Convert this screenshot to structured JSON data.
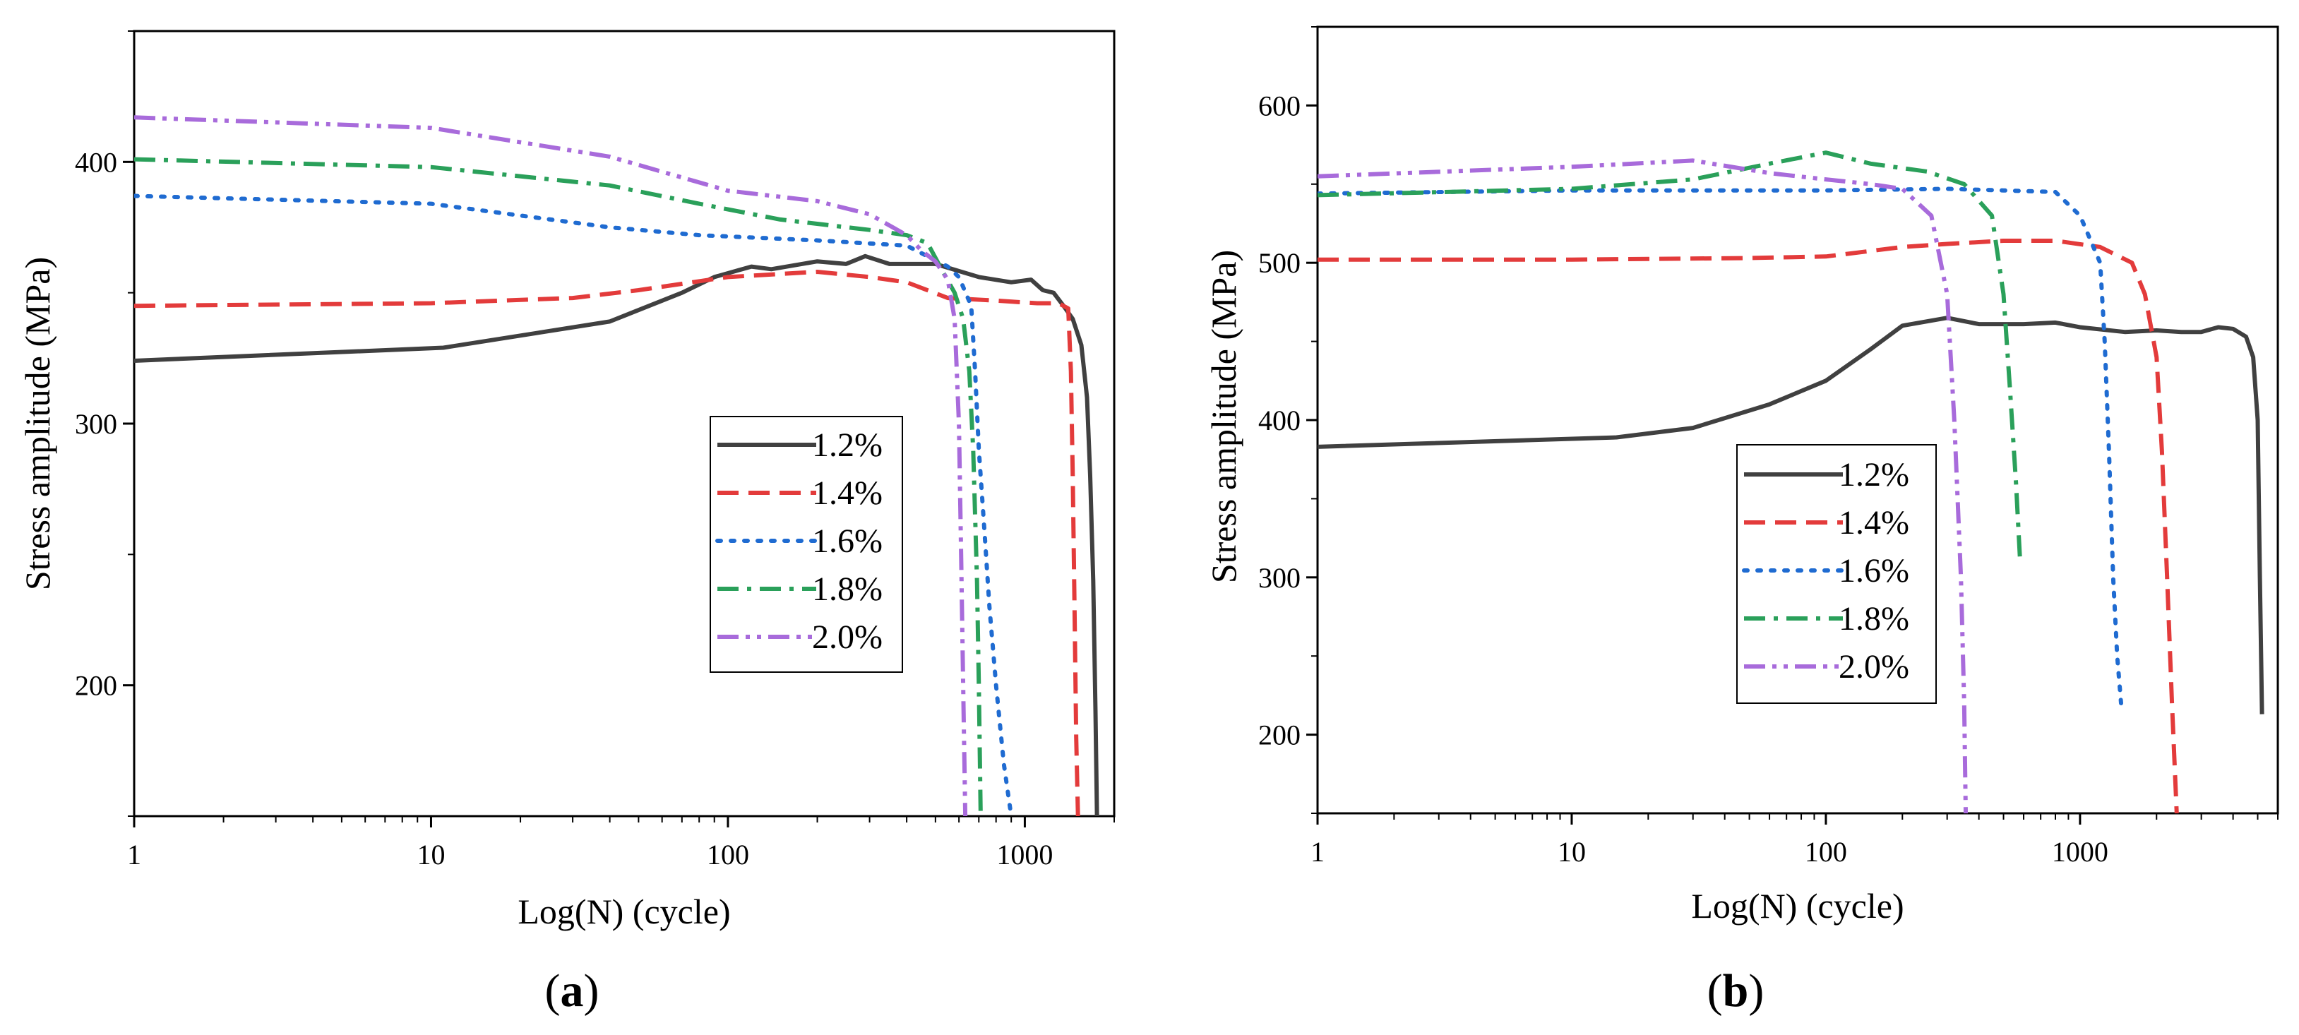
{
  "chart_data": [
    {
      "type": "line",
      "panel_label": "(a)",
      "panel_letter": "a",
      "xlabel": "Log(N) (cycle)",
      "ylabel": "Stress amplitude (MPa)",
      "xscale": "log",
      "xlim": [
        1,
        2000
      ],
      "ylim": [
        150,
        450
      ],
      "xticks": [
        1,
        10,
        100,
        1000
      ],
      "xtick_labels": [
        "1",
        "10",
        "100",
        "1000"
      ],
      "yticks": [
        200,
        300,
        400
      ],
      "ytick_labels": [
        "200",
        "300",
        "400"
      ],
      "grid": false,
      "legend_position": "center-right",
      "series": [
        {
          "name": "1.2%",
          "color": "#404040",
          "dash": "solid",
          "points": [
            [
              1,
              324
            ],
            [
              11,
              329
            ],
            [
              40,
              339
            ],
            [
              70,
              350
            ],
            [
              90,
              356
            ],
            [
              120,
              360
            ],
            [
              140,
              359
            ],
            [
              200,
              362
            ],
            [
              250,
              361
            ],
            [
              290,
              364
            ],
            [
              350,
              361
            ],
            [
              500,
              361
            ],
            [
              700,
              356
            ],
            [
              900,
              354
            ],
            [
              1050,
              355
            ],
            [
              1150,
              351
            ],
            [
              1250,
              350
            ],
            [
              1350,
              345
            ],
            [
              1450,
              340
            ],
            [
              1550,
              330
            ],
            [
              1620,
              310
            ],
            [
              1660,
              280
            ],
            [
              1700,
              240
            ],
            [
              1730,
              190
            ],
            [
              1750,
              150
            ]
          ]
        },
        {
          "name": "1.4%",
          "color": "#e33b3b",
          "dash": "dashed",
          "points": [
            [
              1,
              345
            ],
            [
              10,
              346
            ],
            [
              30,
              348
            ],
            [
              50,
              351
            ],
            [
              100,
              356
            ],
            [
              200,
              358
            ],
            [
              300,
              356
            ],
            [
              400,
              354
            ],
            [
              550,
              348
            ],
            [
              800,
              347
            ],
            [
              1100,
              346
            ],
            [
              1300,
              346
            ],
            [
              1400,
              344
            ],
            [
              1430,
              320
            ],
            [
              1450,
              280
            ],
            [
              1470,
              230
            ],
            [
              1490,
              180
            ],
            [
              1510,
              150
            ]
          ]
        },
        {
          "name": "1.6%",
          "color": "#1f6bd1",
          "dash": "dotted",
          "points": [
            [
              1,
              387
            ],
            [
              10,
              384
            ],
            [
              40,
              375
            ],
            [
              80,
              372
            ],
            [
              200,
              370
            ],
            [
              400,
              368
            ],
            [
              550,
              360
            ],
            [
              600,
              356
            ],
            [
              660,
              345
            ],
            [
              680,
              320
            ],
            [
              700,
              290
            ],
            [
              730,
              260
            ],
            [
              760,
              230
            ],
            [
              800,
              200
            ],
            [
              850,
              170
            ],
            [
              900,
              150
            ]
          ]
        },
        {
          "name": "1.8%",
          "color": "#2aa05a",
          "dash": "dashdot",
          "points": [
            [
              1,
              401
            ],
            [
              10,
              398
            ],
            [
              40,
              391
            ],
            [
              80,
              384
            ],
            [
              150,
              378
            ],
            [
              300,
              374
            ],
            [
              400,
              372
            ],
            [
              470,
              369
            ],
            [
              530,
              358
            ],
            [
              580,
              350
            ],
            [
              620,
              340
            ],
            [
              650,
              320
            ],
            [
              670,
              290
            ],
            [
              690,
              240
            ],
            [
              700,
              200
            ],
            [
              710,
              150
            ]
          ]
        },
        {
          "name": "2.0%",
          "color": "#a86bdb",
          "dash": "dashdotdot",
          "points": [
            [
              1,
              417
            ],
            [
              10,
              413
            ],
            [
              40,
              402
            ],
            [
              100,
              389
            ],
            [
              200,
              385
            ],
            [
              300,
              380
            ],
            [
              400,
              372
            ],
            [
              450,
              366
            ],
            [
              500,
              362
            ],
            [
              550,
              355
            ],
            [
              580,
              340
            ],
            [
              600,
              300
            ],
            [
              610,
              250
            ],
            [
              620,
              200
            ],
            [
              630,
              150
            ]
          ]
        }
      ]
    },
    {
      "type": "line",
      "panel_label": "(b)",
      "panel_letter": "b",
      "xlabel": "Log(N) (cycle)",
      "ylabel": "Stress amplitude (MPa)",
      "xscale": "log",
      "xlim": [
        1,
        6000
      ],
      "ylim": [
        150,
        650
      ],
      "xticks": [
        1,
        10,
        100,
        1000
      ],
      "xtick_labels": [
        "1",
        "10",
        "100",
        "1000"
      ],
      "yticks": [
        200,
        300,
        400,
        500,
        600
      ],
      "ytick_labels": [
        "200",
        "300",
        "400",
        "500",
        "600"
      ],
      "grid": false,
      "legend_position": "center",
      "series": [
        {
          "name": "1.2%",
          "color": "#404040",
          "dash": "solid",
          "points": [
            [
              1,
              383
            ],
            [
              15,
              389
            ],
            [
              30,
              395
            ],
            [
              60,
              410
            ],
            [
              100,
              425
            ],
            [
              150,
              445
            ],
            [
              200,
              460
            ],
            [
              300,
              465
            ],
            [
              400,
              461
            ],
            [
              600,
              461
            ],
            [
              800,
              462
            ],
            [
              1000,
              459
            ],
            [
              1500,
              456
            ],
            [
              2000,
              457
            ],
            [
              2500,
              456
            ],
            [
              3000,
              456
            ],
            [
              3500,
              459
            ],
            [
              4000,
              458
            ],
            [
              4500,
              453
            ],
            [
              4800,
              440
            ],
            [
              5000,
              400
            ],
            [
              5100,
              300
            ],
            [
              5200,
              213
            ]
          ]
        },
        {
          "name": "1.4%",
          "color": "#e33b3b",
          "dash": "dashed",
          "points": [
            [
              1,
              502
            ],
            [
              10,
              502
            ],
            [
              50,
              503
            ],
            [
              100,
              504
            ],
            [
              200,
              510
            ],
            [
              300,
              512
            ],
            [
              500,
              514
            ],
            [
              800,
              514
            ],
            [
              1200,
              510
            ],
            [
              1600,
              500
            ],
            [
              1800,
              480
            ],
            [
              2000,
              440
            ],
            [
              2100,
              380
            ],
            [
              2200,
              300
            ],
            [
              2300,
              220
            ],
            [
              2400,
              150
            ]
          ]
        },
        {
          "name": "1.6%",
          "color": "#1f6bd1",
          "dash": "dotted",
          "points": [
            [
              1,
              544
            ],
            [
              10,
              546
            ],
            [
              50,
              546
            ],
            [
              100,
              546
            ],
            [
              300,
              547
            ],
            [
              500,
              546
            ],
            [
              800,
              545
            ],
            [
              1000,
              530
            ],
            [
              1200,
              500
            ],
            [
              1250,
              450
            ],
            [
              1300,
              380
            ],
            [
              1350,
              300
            ],
            [
              1400,
              250
            ],
            [
              1450,
              220
            ]
          ]
        },
        {
          "name": "1.8%",
          "color": "#2aa05a",
          "dash": "dashdot",
          "points": [
            [
              1,
              543
            ],
            [
              10,
              547
            ],
            [
              30,
              553
            ],
            [
              60,
              563
            ],
            [
              100,
              570
            ],
            [
              150,
              563
            ],
            [
              250,
              558
            ],
            [
              350,
              550
            ],
            [
              450,
              530
            ],
            [
              500,
              480
            ],
            [
              530,
              420
            ],
            [
              560,
              360
            ],
            [
              580,
              313
            ]
          ]
        },
        {
          "name": "2.0%",
          "color": "#a86bdb",
          "dash": "dashdotdot",
          "points": [
            [
              1,
              555
            ],
            [
              10,
              561
            ],
            [
              30,
              565
            ],
            [
              60,
              557
            ],
            [
              100,
              553
            ],
            [
              150,
              550
            ],
            [
              200,
              547
            ],
            [
              260,
              530
            ],
            [
              300,
              480
            ],
            [
              320,
              400
            ],
            [
              340,
              300
            ],
            [
              350,
              220
            ],
            [
              355,
              150
            ]
          ]
        }
      ]
    }
  ]
}
